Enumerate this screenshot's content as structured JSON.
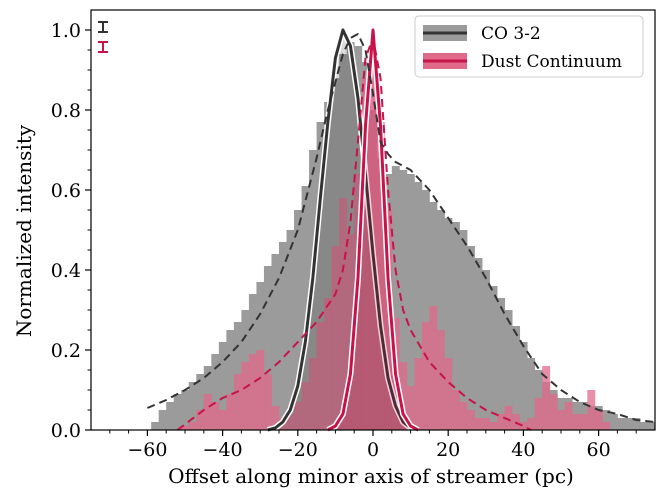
{
  "chart_data": {
    "type": "area",
    "xlabel": "Offset along minor axis of streamer (pc)",
    "ylabel": "Normalized intensity",
    "xlim": [
      -75,
      75
    ],
    "ylim": [
      0,
      1.05
    ],
    "xticks": [
      -60,
      -40,
      -20,
      0,
      20,
      40,
      60
    ],
    "xtick_labels": [
      "−60",
      "−40",
      "−20",
      "0",
      "20",
      "40",
      "60"
    ],
    "yticks": [
      0.0,
      0.2,
      0.4,
      0.6,
      0.8,
      1.0
    ],
    "ytick_labels": [
      "0.0",
      "0.2",
      "0.4",
      "0.6",
      "0.8",
      "1.0"
    ],
    "legend": {
      "location": "upper right",
      "entries": [
        {
          "label": "CO 3-2",
          "color": "#333333",
          "fill": "#9b9b9b"
        },
        {
          "label": "Dust Continuum",
          "color": "#c8124a",
          "fill": "#e06a8a"
        }
      ]
    },
    "series": [
      {
        "name": "CO 3-2",
        "kind": "histogram",
        "color": "#9b9b9b",
        "x": [
          -60,
          -58,
          -56,
          -54,
          -52,
          -50,
          -48,
          -46,
          -44,
          -42,
          -40,
          -38,
          -36,
          -34,
          -32,
          -30,
          -28,
          -26,
          -24,
          -22,
          -20,
          -18,
          -16,
          -14,
          -12,
          -10,
          -8,
          -6,
          -4,
          -2,
          0,
          2,
          4,
          6,
          8,
          10,
          12,
          14,
          16,
          18,
          20,
          22,
          24,
          26,
          28,
          30,
          32,
          34,
          36,
          38,
          40,
          42,
          44,
          46,
          48,
          50,
          52,
          54,
          56,
          58,
          60,
          62,
          64,
          66,
          68,
          70,
          72,
          74
        ],
        "y": [
          0.0,
          0.02,
          0.05,
          0.07,
          0.09,
          0.1,
          0.12,
          0.14,
          0.16,
          0.19,
          0.22,
          0.25,
          0.27,
          0.3,
          0.34,
          0.37,
          0.41,
          0.44,
          0.47,
          0.5,
          0.55,
          0.61,
          0.7,
          0.77,
          0.82,
          0.88,
          0.94,
          0.97,
          0.96,
          0.92,
          0.8,
          0.68,
          0.64,
          0.66,
          0.65,
          0.64,
          0.62,
          0.6,
          0.57,
          0.55,
          0.53,
          0.52,
          0.5,
          0.46,
          0.43,
          0.4,
          0.36,
          0.33,
          0.3,
          0.26,
          0.22,
          0.18,
          0.15,
          0.12,
          0.1,
          0.08,
          0.08,
          0.07,
          0.07,
          0.06,
          0.06,
          0.05,
          0.04,
          0.03,
          0.03,
          0.03,
          0.02,
          0.02
        ]
      },
      {
        "name": "Dust Continuum",
        "kind": "histogram",
        "color": "#e06a8a",
        "x": [
          -60,
          -58,
          -56,
          -54,
          -52,
          -50,
          -48,
          -46,
          -44,
          -42,
          -40,
          -38,
          -36,
          -34,
          -32,
          -30,
          -28,
          -26,
          -24,
          -22,
          -20,
          -18,
          -16,
          -14,
          -12,
          -10,
          -8,
          -6,
          -4,
          -2,
          0,
          2,
          4,
          6,
          8,
          10,
          12,
          14,
          16,
          18,
          20,
          22,
          24,
          26,
          28,
          30,
          32,
          34,
          36,
          38,
          40,
          42,
          44,
          46,
          48,
          50,
          52,
          54,
          56,
          58,
          60,
          62,
          64,
          66,
          68,
          70,
          72,
          74
        ],
        "y": [
          0.0,
          0.0,
          0.0,
          0.0,
          0.0,
          0.01,
          0.02,
          0.05,
          0.09,
          0.07,
          0.05,
          0.09,
          0.14,
          0.17,
          0.19,
          0.2,
          0.14,
          0.06,
          0.03,
          0.04,
          0.07,
          0.12,
          0.18,
          0.27,
          0.33,
          0.46,
          0.58,
          0.49,
          0.64,
          0.88,
          0.97,
          0.77,
          0.55,
          0.28,
          0.17,
          0.11,
          0.18,
          0.27,
          0.31,
          0.25,
          0.18,
          0.1,
          0.07,
          0.05,
          0.03,
          0.03,
          0.02,
          0.04,
          0.06,
          0.04,
          0.02,
          0.03,
          0.08,
          0.16,
          0.09,
          0.05,
          0.07,
          0.04,
          0.04,
          0.1,
          0.05,
          0.02,
          0.0,
          0.0,
          0.0,
          0.0,
          0.0,
          0.0
        ]
      },
      {
        "name": "CO 3-2 beam profile",
        "kind": "line",
        "color": "#333333",
        "x": [
          -28,
          -26,
          -24,
          -22,
          -20,
          -18,
          -16,
          -14,
          -12,
          -10,
          -8,
          -6,
          -4,
          -2,
          0,
          2,
          4,
          6,
          8,
          10,
          12
        ],
        "y": [
          0.0,
          0.005,
          0.02,
          0.05,
          0.11,
          0.22,
          0.38,
          0.58,
          0.77,
          0.93,
          1.0,
          0.96,
          0.83,
          0.64,
          0.44,
          0.26,
          0.13,
          0.06,
          0.02,
          0.005,
          0.0
        ]
      },
      {
        "name": "Dust Continuum beam profile",
        "kind": "line",
        "color": "#c8124a",
        "x": [
          -12,
          -10,
          -8,
          -6,
          -4,
          -2,
          0,
          2,
          4,
          6,
          8,
          10,
          12
        ],
        "y": [
          0.0,
          0.01,
          0.04,
          0.14,
          0.38,
          0.76,
          1.0,
          0.76,
          0.38,
          0.14,
          0.04,
          0.01,
          0.0
        ]
      },
      {
        "name": "CO 3-2 model",
        "kind": "dashed",
        "color": "#333333",
        "x": [
          -60,
          -55,
          -50,
          -45,
          -40,
          -35,
          -30,
          -25,
          -20,
          -15,
          -12,
          -10,
          -8,
          -6,
          -4,
          -2,
          0,
          2,
          4,
          6,
          8,
          10,
          15,
          20,
          25,
          30,
          35,
          40,
          45,
          50,
          55,
          60,
          65,
          70,
          75
        ],
        "y": [
          0.055,
          0.075,
          0.1,
          0.13,
          0.17,
          0.22,
          0.29,
          0.38,
          0.5,
          0.68,
          0.8,
          0.87,
          0.94,
          0.98,
          0.99,
          0.95,
          0.84,
          0.72,
          0.69,
          0.67,
          0.66,
          0.65,
          0.6,
          0.53,
          0.46,
          0.38,
          0.29,
          0.21,
          0.14,
          0.1,
          0.07,
          0.05,
          0.04,
          0.025,
          0.02
        ]
      },
      {
        "name": "Dust Continuum model",
        "kind": "dashed",
        "color": "#c8124a",
        "x": [
          -52,
          -45,
          -40,
          -35,
          -30,
          -25,
          -20,
          -15,
          -10,
          -8,
          -6,
          -4,
          -2,
          0,
          2,
          4,
          6,
          8,
          10,
          15,
          20,
          25,
          30,
          35,
          40,
          42
        ],
        "y": [
          0.0,
          0.05,
          0.08,
          0.1,
          0.13,
          0.17,
          0.22,
          0.27,
          0.34,
          0.4,
          0.52,
          0.72,
          0.93,
          0.98,
          0.88,
          0.6,
          0.4,
          0.3,
          0.25,
          0.17,
          0.12,
          0.08,
          0.05,
          0.03,
          0.01,
          0.0
        ]
      }
    ],
    "error_bars": [
      {
        "color": "#333333",
        "y_level": 1.0
      },
      {
        "color": "#c8124a",
        "y_level": 0.955
      }
    ]
  }
}
